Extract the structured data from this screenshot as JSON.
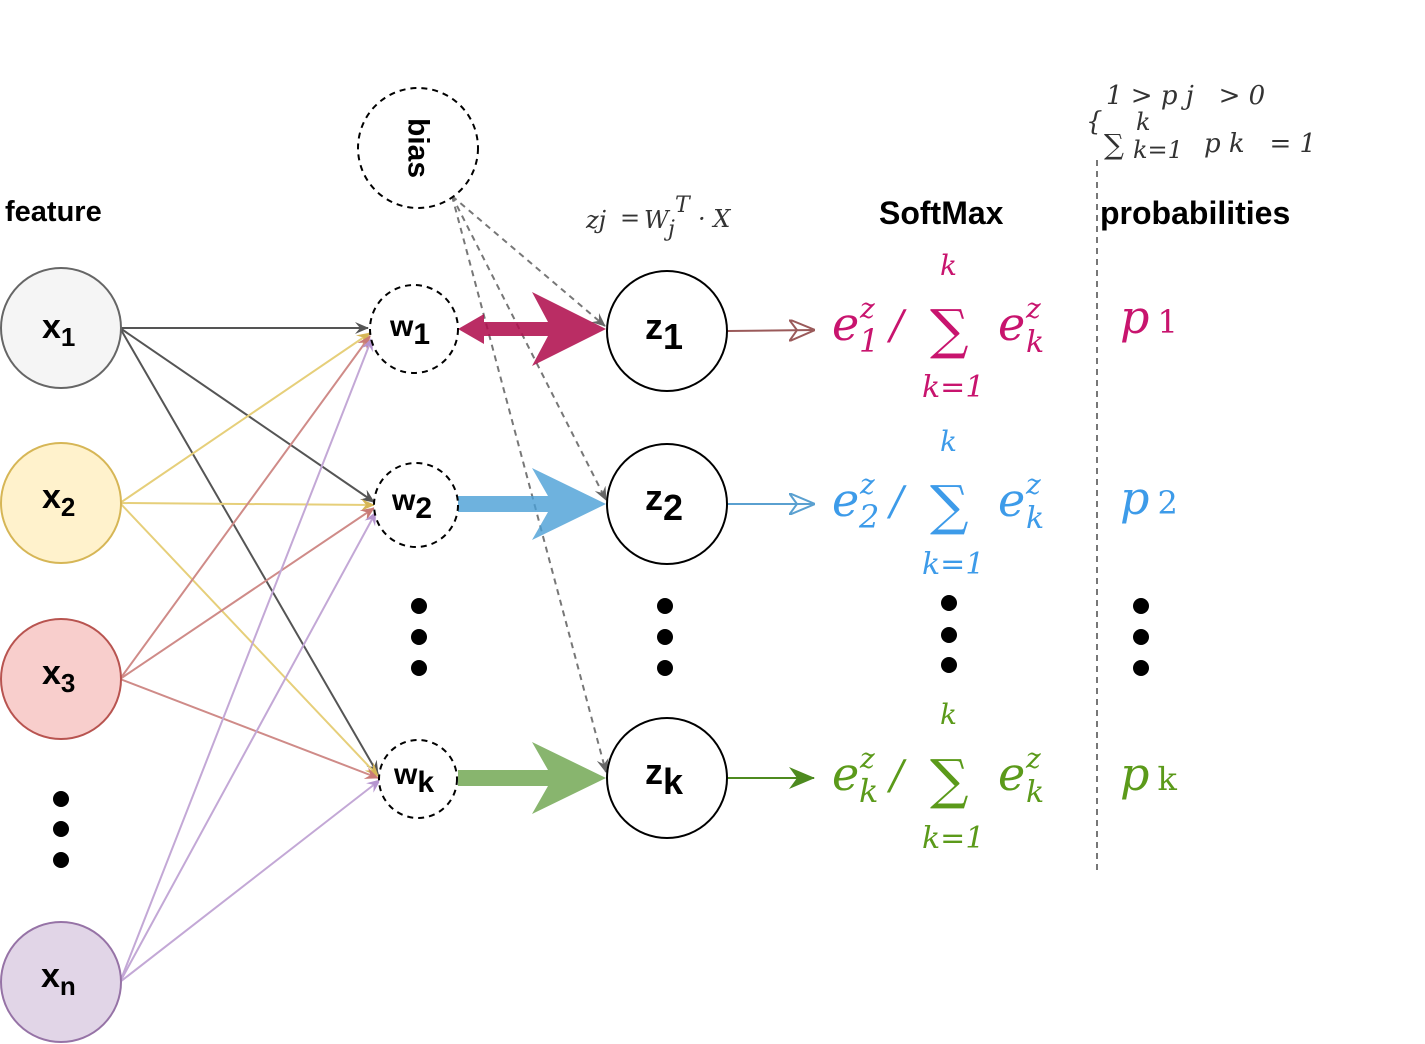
{
  "headers": {
    "feature": "feature",
    "softmax": "SoftMax",
    "probabilities": "probabilities"
  },
  "formula_z": {
    "lhs": "zj",
    "eq": "=",
    "w": "W",
    "sup": "T",
    "sub": "j",
    "dot": "· X"
  },
  "constraint": {
    "line1": "1 > p j   > 0",
    "line2_sum": "∑",
    "line2_upper": "k",
    "line2_lower": "k=1",
    "line2_rest": "p k   = 1",
    "brace": "{"
  },
  "bias": {
    "label": "bias"
  },
  "inputs": [
    {
      "base": "x",
      "sub": "1",
      "fill": "#f5f5f5",
      "stroke": "#666666"
    },
    {
      "base": "x",
      "sub": "2",
      "fill": "#fff2cc",
      "stroke": "#d6b656"
    },
    {
      "base": "x",
      "sub": "3",
      "fill": "#f8cecc",
      "stroke": "#b85450"
    },
    {
      "base": "x",
      "sub": "n",
      "fill": "#e1d5e7",
      "stroke": "#9673a6"
    }
  ],
  "weights": [
    {
      "base": "w",
      "sub": "1"
    },
    {
      "base": "w",
      "sub": "2"
    },
    {
      "base": "w",
      "sub": "k"
    }
  ],
  "outputs": [
    {
      "base": "z",
      "sub": "1"
    },
    {
      "base": "z",
      "sub": "2"
    },
    {
      "base": "z",
      "sub": "k"
    }
  ],
  "softmax_rows": [
    {
      "e": "e",
      "sup": "z",
      "sub": "1",
      "slash": "/",
      "sum": "∑",
      "upper": "k",
      "lower": "k=1",
      "e2": "e",
      "sup2": "z",
      "sub2": "k",
      "p": "p",
      "psub": "1",
      "color": "#c8146e",
      "arrow_color": "#8a1538"
    },
    {
      "e": "e",
      "sup": "z",
      "sub": "2",
      "slash": "/",
      "sum": "∑",
      "upper": "k",
      "lower": "k=1",
      "e2": "e",
      "sup2": "z",
      "sub2": "k",
      "p": "p",
      "psub": "2",
      "color": "#3d9be9",
      "arrow_color": "#1b75bc"
    },
    {
      "e": "e",
      "sup": "z",
      "sub": "k",
      "slash": "/",
      "sum": "∑",
      "upper": "k",
      "lower": "k=1",
      "e2": "e",
      "sup2": "z",
      "sub2": "k",
      "p": "p",
      "psub": "k",
      "color": "#5b9a1a",
      "arrow_color": "#4d8a1f"
    }
  ],
  "colors": {
    "x1_edge": "#555555",
    "x2_edge": "#e6cf7a",
    "x3_edge": "#cf8b88",
    "xn_edge": "#c3a8d6",
    "bias_edge": "#777777",
    "w1_z1": "#a8104a",
    "w2_z2": "#4a9fd6",
    "wk_zk": "#6aa34a"
  }
}
